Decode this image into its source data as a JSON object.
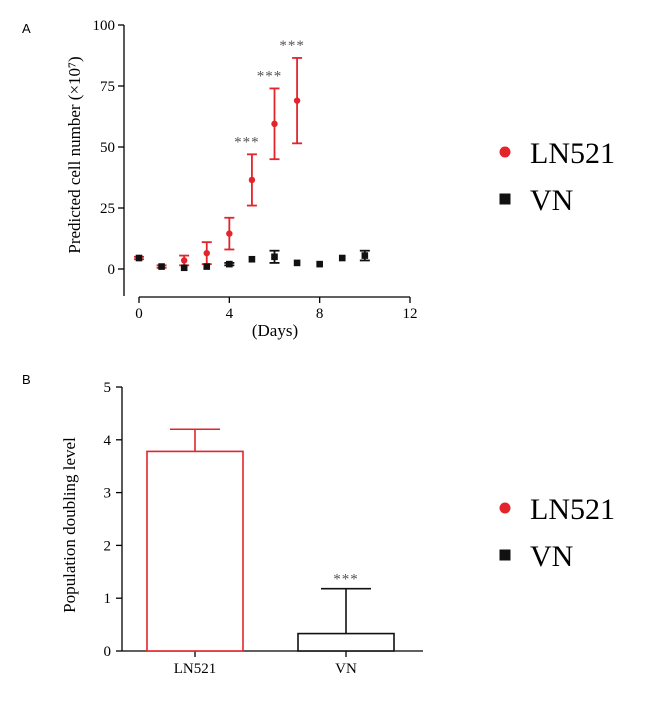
{
  "chart_data": [
    {
      "panel": "A",
      "type": "scatter",
      "xlabel": "(Days)",
      "ylabel": "Predicted cell number (×10⁷)",
      "xlim": [
        0,
        12
      ],
      "ylim": [
        -5,
        100
      ],
      "xticks": [
        "0",
        "4",
        "8",
        "12"
      ],
      "yticks": [
        "0",
        "25",
        "50",
        "75",
        "100"
      ],
      "legend": {
        "position": "right",
        "labels": [
          "LN521",
          "VN"
        ]
      },
      "annotations": [
        "***",
        "***",
        "***"
      ],
      "annotated_x": [
        5,
        6,
        7
      ],
      "series": [
        {
          "name": "LN521",
          "color": "#e3242b",
          "marker": "circle",
          "x": [
            0,
            1,
            2,
            3,
            4,
            5,
            6,
            7
          ],
          "y": [
            4.5,
            1,
            3.5,
            6.5,
            14.5,
            36.5,
            59.5,
            69
          ],
          "err": [
            0.5,
            0.5,
            2,
            4.5,
            6.5,
            10.5,
            14.5,
            17.5
          ]
        },
        {
          "name": "VN",
          "color": "#111111",
          "marker": "square",
          "x": [
            0,
            1,
            2,
            3,
            4,
            5,
            6,
            7,
            8,
            9,
            10
          ],
          "y": [
            4.5,
            1,
            0.5,
            1,
            2,
            4,
            5,
            2.5,
            2,
            4.5,
            5.5
          ],
          "err": [
            0,
            0,
            0,
            0,
            0.5,
            0,
            2.5,
            0,
            0,
            0,
            2
          ]
        }
      ]
    },
    {
      "panel": "B",
      "type": "bar",
      "ylabel": "Population doubling level",
      "categories": [
        "LN521",
        "VN"
      ],
      "values": [
        3.78,
        0.33
      ],
      "errors": [
        0.42,
        0.85
      ],
      "ylim": [
        0,
        5
      ],
      "yticks": [
        "0",
        "1",
        "2",
        "3",
        "4",
        "5"
      ],
      "colors": [
        "#e3242b",
        "#111111"
      ],
      "legend": {
        "position": "right",
        "labels": [
          "LN521",
          "VN"
        ]
      },
      "annotations": [
        "",
        "***"
      ]
    }
  ]
}
